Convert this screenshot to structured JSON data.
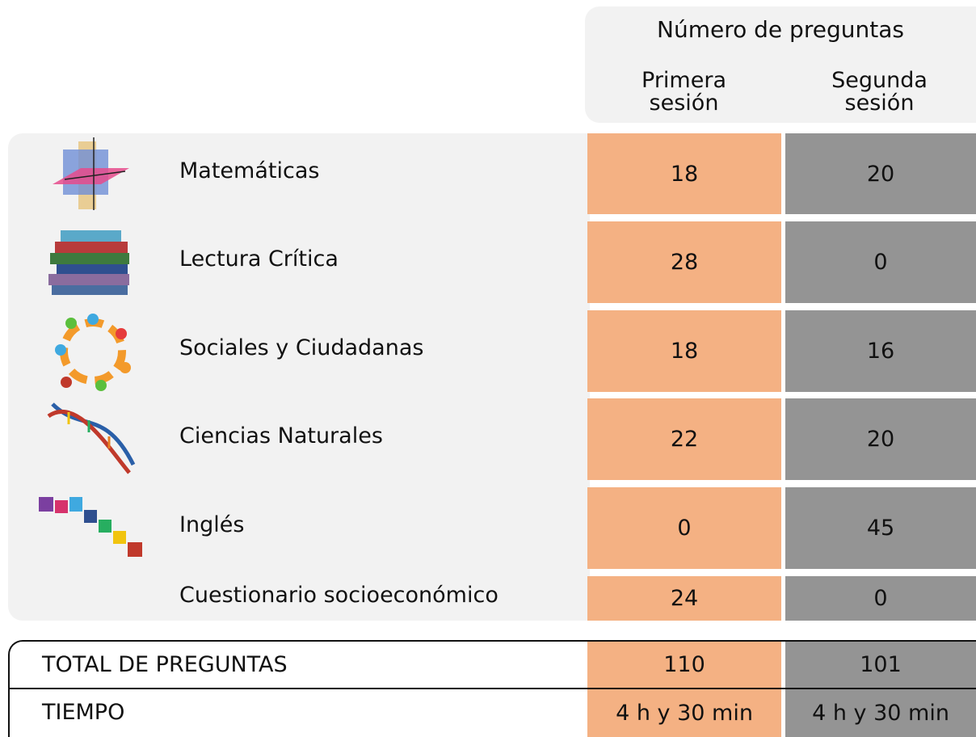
{
  "header": {
    "title": "Número de preguntas",
    "columns": [
      "Primera sesión",
      "Segunda sesión"
    ]
  },
  "table": {
    "rows": [
      [
        "Matemáticas",
        18,
        20
      ],
      [
        "Lectura Crítica",
        28,
        0
      ],
      [
        "Sociales y Ciudadanas",
        18,
        16
      ],
      [
        "Ciencias Naturales",
        22,
        20
      ],
      [
        "Inglés",
        0,
        45
      ],
      [
        "Cuestionario socioeconómico",
        24,
        0
      ]
    ]
  },
  "totals": {
    "rows": [
      [
        "TOTAL DE PREGUNTAS",
        110,
        101
      ],
      [
        "TIEMPO",
        "4 h y 30 min",
        "4 h y 30 min"
      ]
    ]
  }
}
